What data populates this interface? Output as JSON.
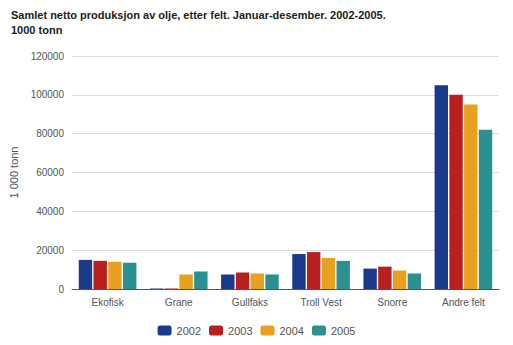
{
  "chart_data": {
    "type": "bar",
    "title": "Samlet netto produksjon av olje, etter felt. Januar-desember. 2002-2005.",
    "subtitle": "1000 tonn",
    "ylabel": "1 000 tonn",
    "categories": [
      "Ekofisk",
      "Grane",
      "Gullfaks",
      "Troll Vest",
      "Snorre",
      "Andre felt"
    ],
    "series": [
      {
        "name": "2002",
        "color": "#1a3a8c",
        "values": [
          15000,
          200,
          7500,
          18000,
          10500,
          105000
        ]
      },
      {
        "name": "2003",
        "color": "#b82020",
        "values": [
          14500,
          200,
          8500,
          19000,
          11500,
          100000
        ]
      },
      {
        "name": "2004",
        "color": "#e8a020",
        "values": [
          14000,
          7500,
          8000,
          16000,
          9500,
          95000
        ]
      },
      {
        "name": "2005",
        "color": "#2a9090",
        "values": [
          13500,
          9000,
          7500,
          14500,
          8000,
          82000
        ]
      }
    ],
    "ylim": [
      0,
      120000
    ],
    "yticks": [
      0,
      20000,
      40000,
      60000,
      80000,
      100000,
      120000
    ],
    "grid": true,
    "legend": "bottom"
  }
}
